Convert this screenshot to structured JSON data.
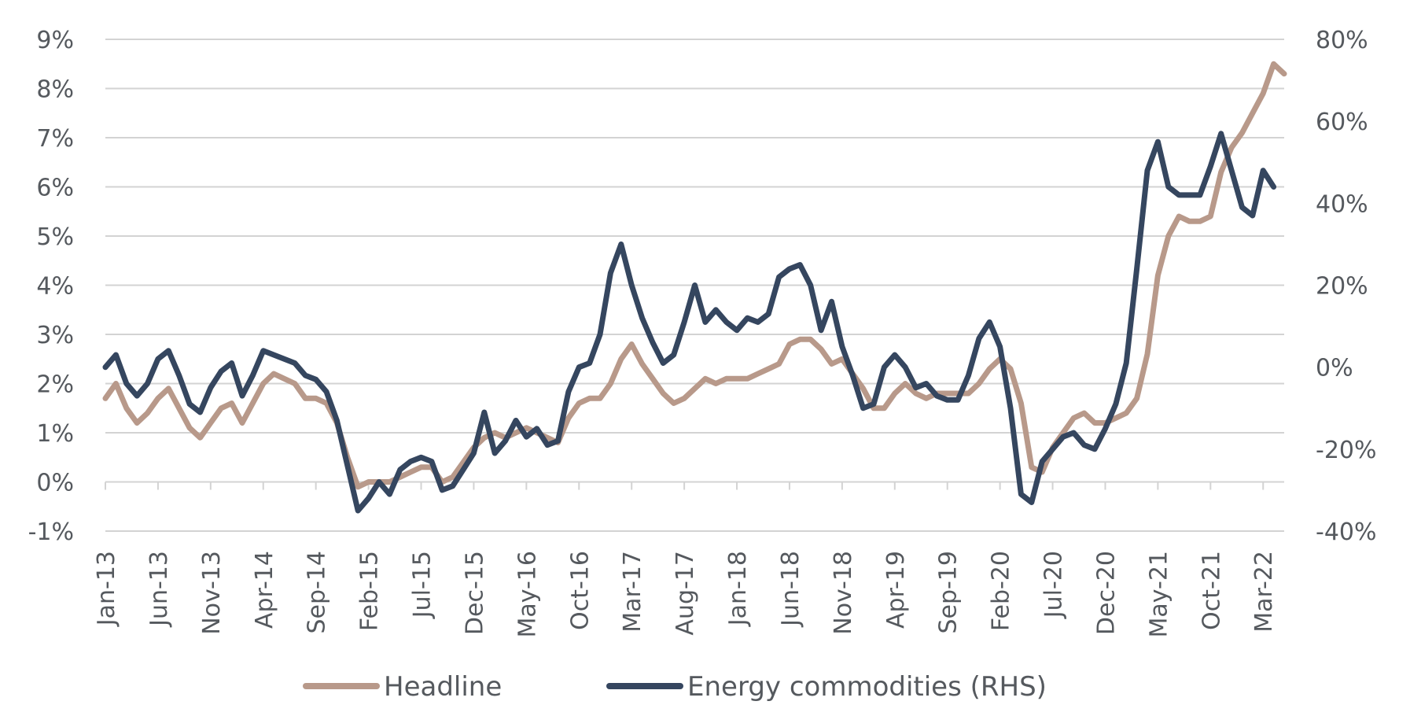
{
  "chart_data": {
    "type": "line",
    "title": "",
    "xlabel": "",
    "ylabel": "",
    "y2label": "",
    "grid": true,
    "legend_position": "bottom",
    "x_tick_labels": [
      "Jan-13",
      "Jun-13",
      "Nov-13",
      "Apr-14",
      "Sep-14",
      "Feb-15",
      "Jul-15",
      "Dec-15",
      "May-16",
      "Oct-16",
      "Mar-17",
      "Aug-17",
      "Jan-18",
      "Jun-18",
      "Nov-18",
      "Apr-19",
      "Sep-19",
      "Feb-20",
      "Jul-20",
      "Dec-20",
      "May-21",
      "Oct-21",
      "Mar-22"
    ],
    "x_start": "Jan-13",
    "x_end": "Apr-22",
    "y_left": {
      "range": [
        -1,
        9
      ],
      "ticks": [
        "-1%",
        "0%",
        "1%",
        "2%",
        "3%",
        "4%",
        "5%",
        "6%",
        "7%",
        "8%",
        "9%"
      ]
    },
    "y_right": {
      "range": [
        -40,
        80
      ],
      "ticks": [
        "-40%",
        "-20%",
        "0%",
        "20%",
        "40%",
        "60%",
        "80%"
      ]
    },
    "series": [
      {
        "name": "Headline",
        "axis": "left",
        "color": "#b8998a",
        "values": [
          1.7,
          2.0,
          1.5,
          1.2,
          1.4,
          1.7,
          1.9,
          1.5,
          1.1,
          0.9,
          1.2,
          1.5,
          1.6,
          1.2,
          1.6,
          2.0,
          2.2,
          2.1,
          2.0,
          1.7,
          1.7,
          1.6,
          1.2,
          0.5,
          -0.1,
          0.0,
          0.0,
          0.0,
          0.1,
          0.2,
          0.3,
          0.3,
          0.0,
          0.1,
          0.4,
          0.7,
          0.9,
          1.0,
          0.9,
          1.0,
          1.1,
          1.0,
          0.9,
          0.8,
          1.3,
          1.6,
          1.7,
          1.7,
          2.0,
          2.5,
          2.8,
          2.4,
          2.1,
          1.8,
          1.6,
          1.7,
          1.9,
          2.1,
          2.0,
          2.1,
          2.1,
          2.1,
          2.2,
          2.3,
          2.4,
          2.8,
          2.9,
          2.9,
          2.7,
          2.4,
          2.5,
          2.2,
          1.9,
          1.5,
          1.5,
          1.8,
          2.0,
          1.8,
          1.7,
          1.8,
          1.8,
          1.8,
          1.8,
          2.0,
          2.3,
          2.5,
          2.3,
          1.6,
          0.3,
          0.2,
          0.7,
          1.0,
          1.3,
          1.4,
          1.2,
          1.2,
          1.3,
          1.4,
          1.7,
          2.6,
          4.2,
          5.0,
          5.4,
          5.3,
          5.3,
          5.4,
          6.3,
          6.8,
          7.1,
          7.5,
          7.9,
          8.5,
          8.3
        ]
      },
      {
        "name": "Energy commodities (RHS)",
        "axis": "right",
        "color": "#35465f",
        "values": [
          0,
          3,
          -4,
          -7,
          -4,
          2,
          4,
          -2,
          -9,
          -11,
          -5,
          -1,
          1,
          -7,
          -2,
          4,
          3,
          2,
          1,
          -2,
          -3,
          -6,
          -13,
          -24,
          -35,
          -32,
          -28,
          -31,
          -25,
          -23,
          -22,
          -23,
          -30,
          -29,
          -25,
          -21,
          -11,
          -21,
          -18,
          -13,
          -17,
          -15,
          -19,
          -18,
          -6,
          0,
          1,
          8,
          23,
          30,
          20,
          12,
          6,
          1,
          3,
          11,
          20,
          11,
          14,
          11,
          9,
          12,
          11,
          13,
          22,
          24,
          25,
          20,
          9,
          16,
          5,
          -2,
          -10,
          -9,
          0,
          3,
          0,
          -5,
          -4,
          -7,
          -8,
          -8,
          -2,
          7,
          11,
          5,
          -10,
          -31,
          -33,
          -23,
          -20,
          -17,
          -16,
          -19,
          -20,
          -15,
          -9,
          1,
          24,
          48,
          55,
          44,
          42,
          42,
          42,
          49,
          57,
          48,
          39,
          37,
          48,
          44
        ]
      }
    ]
  },
  "legend": {
    "items": [
      "Headline",
      "Energy commodities (RHS)"
    ]
  }
}
